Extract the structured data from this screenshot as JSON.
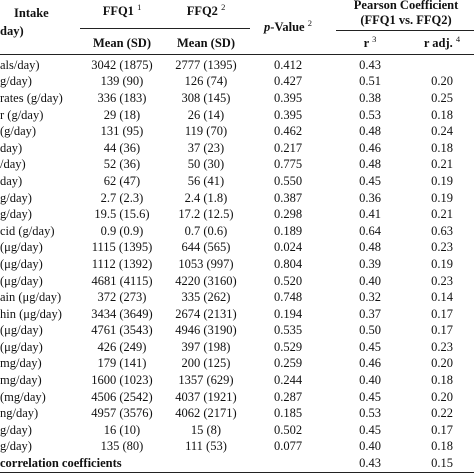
{
  "header": {
    "intake": "Intake",
    "intake_unit": "day)",
    "ffq1": "FFQ1",
    "ffq1_sup": "1",
    "ffq2": "FFQ2",
    "ffq2_sup": "2",
    "mean_sd_1": "Mean (SD)",
    "mean_sd_2": "Mean (SD)",
    "p": "p",
    "value": "-Value",
    "p_sup": "2",
    "pearson": "Pearson Coefficient",
    "pearson_sub": "(FFQ1 vs. FFQ2)",
    "r": "r",
    "r_sup": "3",
    "r_adj": "r adj.",
    "r_adj_sup": "4"
  },
  "table": {
    "rows": [
      [
        "als/day)",
        "3042 (1875)",
        "2777 (1395)",
        "0.412",
        "0.43",
        null
      ],
      [
        "g/day)",
        "139 (90)",
        "126 (74)",
        "0.427",
        "0.51",
        "0.20"
      ],
      [
        "rates (g/day)",
        "336 (183)",
        "308 (145)",
        "0.395",
        "0.38",
        "0.25"
      ],
      [
        "r (g/day)",
        "29 (18)",
        "26 (14)",
        "0.395",
        "0.53",
        "0.18"
      ],
      [
        "(g/day)",
        "131 (95)",
        "119 (70)",
        "0.462",
        "0.48",
        "0.24"
      ],
      [
        "day)",
        "44 (36)",
        "37 (23)",
        "0.217",
        "0.46",
        "0.18"
      ],
      [
        "/day)",
        "52 (36)",
        "50 (30)",
        "0.775",
        "0.48",
        "0.21"
      ],
      [
        "day)",
        "62 (47)",
        "56 (41)",
        "0.550",
        "0.45",
        "0.19"
      ],
      [
        "g/day)",
        "2.7 (2.3)",
        "2.4 (1.8)",
        "0.387",
        "0.36",
        "0.19"
      ],
      [
        "g/day)",
        "19.5 (15.6)",
        "17.2 (12.5)",
        "0.298",
        "0.41",
        "0.21"
      ],
      [
        "cid (g/day)",
        "0.9 (0.9)",
        "0.7 (0.6)",
        "0.189",
        "0.64",
        "0.63"
      ],
      [
        "(μg/day)",
        "1115 (1395)",
        "644 (565)",
        "0.024",
        "0.48",
        "0.23"
      ],
      [
        "(μg/day)",
        "1112 (1392)",
        "1053 (997)",
        "0.804",
        "0.39",
        "0.19"
      ],
      [
        "(μg/day)",
        "4681 (4115)",
        "4220 (3160)",
        "0.520",
        "0.40",
        "0.23"
      ],
      [
        "ain (μg/day)",
        "372 (273)",
        "335 (262)",
        "0.748",
        "0.32",
        "0.14"
      ],
      [
        "hin (μg/day)",
        "3434 (3649)",
        "2674 (2131)",
        "0.194",
        "0.37",
        "0.17"
      ],
      [
        "(μg/day)",
        "4761 (3543)",
        "4946 (3190)",
        "0.535",
        "0.50",
        "0.17"
      ],
      [
        "(μg/day)",
        "426 (249)",
        "397 (198)",
        "0.529",
        "0.45",
        "0.23"
      ],
      [
        "mg/day)",
        "179 (141)",
        "200 (125)",
        "0.259",
        "0.46",
        "0.20"
      ],
      [
        "mg/day)",
        "1600 (1023)",
        "1357 (629)",
        "0.244",
        "0.40",
        "0.18"
      ],
      [
        "(mg/day)",
        "4506 (2542)",
        "4037 (1921)",
        "0.287",
        "0.45",
        "0.20"
      ],
      [
        "ng/day)",
        "4957 (3576)",
        "4062 (2171)",
        "0.185",
        "0.53",
        "0.22"
      ],
      [
        "g/day)",
        "16 (10)",
        "15 (8)",
        "0.502",
        "0.45",
        "0.17"
      ],
      [
        "g/day)",
        "135 (80)",
        "111 (53)",
        "0.077",
        "0.40",
        "0.18"
      ]
    ],
    "footer": [
      "correlation coefficients",
      null,
      null,
      null,
      "0.43",
      "0.15"
    ]
  }
}
